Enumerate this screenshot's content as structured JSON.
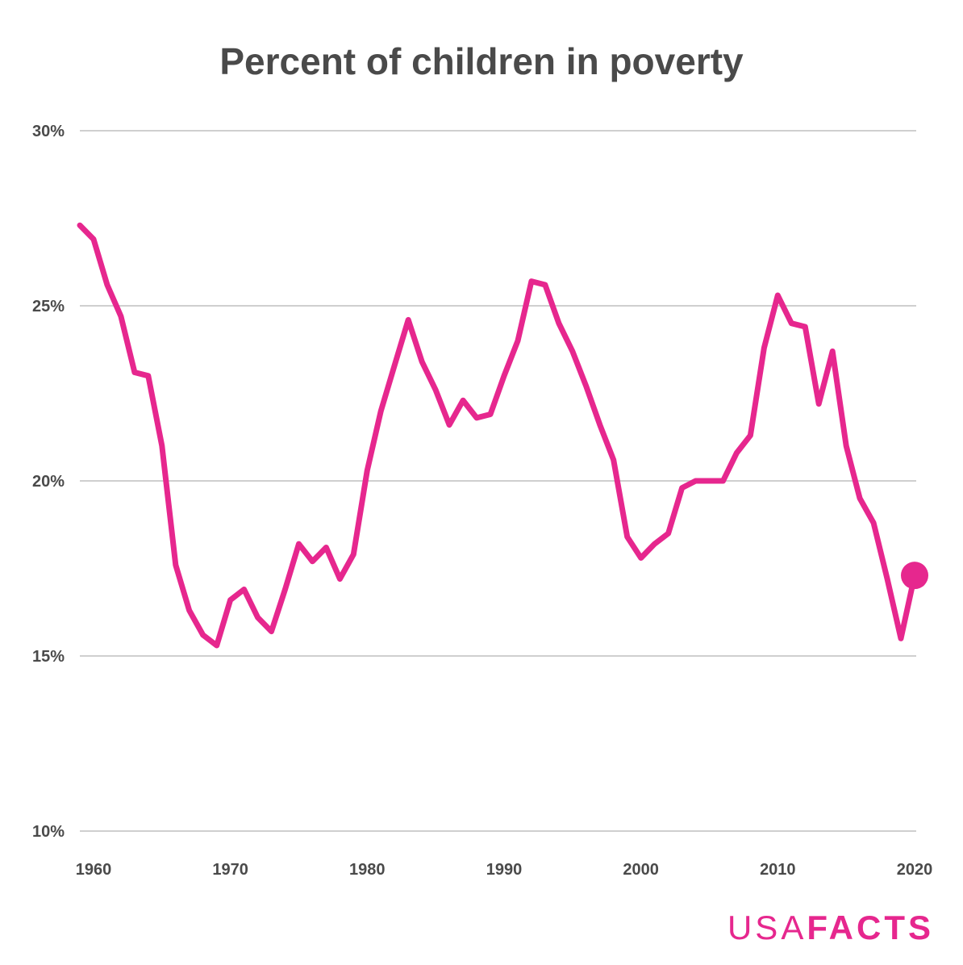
{
  "chart_data": {
    "type": "line",
    "title": "Percent of children in poverty",
    "xlabel": "",
    "ylabel": "",
    "xlim": [
      1959,
      2020
    ],
    "ylim": [
      10,
      30
    ],
    "x_ticks": [
      1960,
      1970,
      1980,
      1990,
      2000,
      2010,
      2020
    ],
    "y_ticks": [
      10,
      15,
      20,
      25,
      30
    ],
    "y_tick_labels": [
      "10%",
      "15%",
      "20%",
      "25%",
      "30%"
    ],
    "grid": true,
    "series": [
      {
        "color": "#e6278e",
        "x": [
          1959,
          1960,
          1961,
          1962,
          1963,
          1964,
          1965,
          1966,
          1967,
          1968,
          1969,
          1970,
          1971,
          1972,
          1973,
          1974,
          1975,
          1976,
          1977,
          1978,
          1979,
          1980,
          1981,
          1982,
          1983,
          1984,
          1985,
          1986,
          1987,
          1988,
          1989,
          1990,
          1991,
          1992,
          1993,
          1994,
          1995,
          1996,
          1997,
          1998,
          1999,
          2000,
          2001,
          2002,
          2003,
          2004,
          2005,
          2006,
          2007,
          2008,
          2009,
          2010,
          2011,
          2012,
          2013,
          2014,
          2015,
          2016,
          2017,
          2018,
          2019,
          2020
        ],
        "values": [
          27.3,
          26.9,
          25.6,
          24.7,
          23.1,
          23.0,
          21.0,
          17.6,
          16.3,
          15.6,
          15.3,
          16.6,
          16.9,
          16.1,
          15.7,
          16.9,
          18.2,
          17.7,
          18.1,
          17.2,
          17.9,
          20.3,
          22.0,
          23.3,
          24.6,
          23.4,
          22.6,
          21.6,
          22.3,
          21.8,
          21.9,
          23.0,
          24.0,
          25.7,
          25.6,
          24.5,
          23.7,
          22.7,
          21.6,
          20.6,
          18.4,
          17.8,
          18.2,
          18.5,
          19.8,
          20.0,
          20.0,
          20.0,
          20.8,
          21.3,
          23.8,
          25.3,
          24.5,
          24.4,
          22.2,
          23.7,
          21.0,
          19.5,
          18.8,
          17.2,
          15.5,
          17.3
        ],
        "highlight_last": true
      }
    ]
  },
  "branding": {
    "logo_light": "USA",
    "logo_bold": "FACTS",
    "logo_color": "#e6278e"
  }
}
